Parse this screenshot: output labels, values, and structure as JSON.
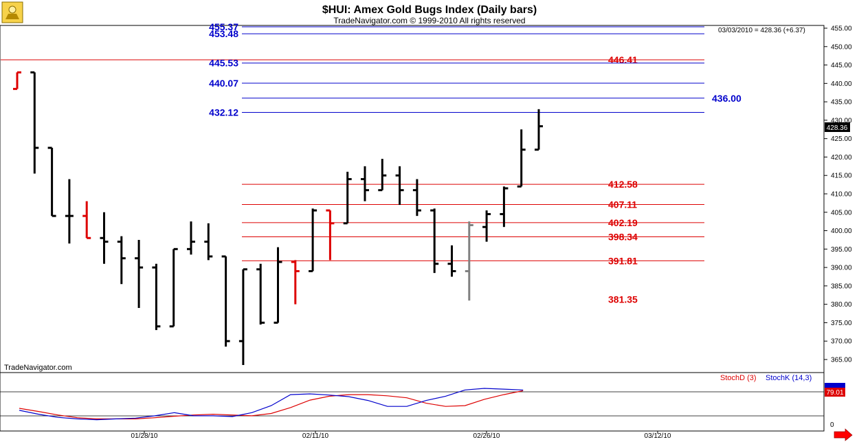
{
  "header": {
    "title": "$HUI:  Amex Gold Bugs Index  (Daily bars)",
    "subtitle": "TradeNavigator.com © 1999-2010 All rights reserved",
    "quote": "03/03/2010 = 428.36 (+6.37)",
    "last_price": "428.36",
    "cut_label": "455.37"
  },
  "watermark": "TradeNavigator.com",
  "colors": {
    "blue": "#0000cc",
    "red": "#dd0000",
    "up": "#000000",
    "gray": "#808080"
  },
  "chart_data": [
    {
      "type": "bar",
      "title": "$HUI:  Amex Gold Bugs Index  (Daily bars)",
      "ylim": [
        360,
        457
      ],
      "y_ticks": [
        "455.00",
        "450.00",
        "445.00",
        "440.00",
        "435.00",
        "430.00",
        "425.00",
        "420.00",
        "415.00",
        "410.00",
        "405.00",
        "400.00",
        "395.00",
        "390.00",
        "385.00",
        "380.00",
        "375.00",
        "370.00",
        "365.00"
      ],
      "x_ticks": [
        "01/28/10",
        "02/11/10",
        "02/26/10",
        "03/12/10"
      ],
      "bars": [
        {
          "o": 438.5,
          "h": 443.0,
          "l": 438.5,
          "c": 443.0,
          "color": "red"
        },
        {
          "o": 443.0,
          "h": 443.0,
          "l": 415.5,
          "c": 422.5,
          "color": "black"
        },
        {
          "o": 422.5,
          "h": 422.5,
          "l": 404.0,
          "c": 404.0,
          "color": "black"
        },
        {
          "o": 404.0,
          "h": 414.0,
          "l": 396.5,
          "c": 404.0,
          "color": "black"
        },
        {
          "o": 404.0,
          "h": 408.0,
          "l": 398.0,
          "c": 398.0,
          "color": "red"
        },
        {
          "o": 398.0,
          "h": 405.0,
          "l": 391.0,
          "c": 397.0,
          "color": "black"
        },
        {
          "o": 397.0,
          "h": 398.5,
          "l": 385.5,
          "c": 392.5,
          "color": "black"
        },
        {
          "o": 392.5,
          "h": 397.5,
          "l": 379.0,
          "c": 390.0,
          "color": "black"
        },
        {
          "o": 390.0,
          "h": 391.0,
          "l": 373.0,
          "c": 374.0,
          "color": "black"
        },
        {
          "o": 374.0,
          "h": 395.0,
          "l": 374.0,
          "c": 395.0,
          "color": "black"
        },
        {
          "o": 395.0,
          "h": 402.5,
          "l": 393.5,
          "c": 397.0,
          "color": "black"
        },
        {
          "o": 397.0,
          "h": 402.0,
          "l": 392.0,
          "c": 393.0,
          "color": "black"
        },
        {
          "o": 393.0,
          "h": 393.0,
          "l": 368.5,
          "c": 370.0,
          "color": "black"
        },
        {
          "o": 370.0,
          "h": 389.5,
          "l": 363.5,
          "c": 389.5,
          "color": "black"
        },
        {
          "o": 389.5,
          "h": 391.0,
          "l": 374.5,
          "c": 375.0,
          "color": "black"
        },
        {
          "o": 375.0,
          "h": 395.5,
          "l": 375.0,
          "c": 391.5,
          "color": "black"
        },
        {
          "o": 391.5,
          "h": 392.0,
          "l": 380.0,
          "c": 389.0,
          "color": "red"
        },
        {
          "o": 389.0,
          "h": 406.0,
          "l": 389.0,
          "c": 405.5,
          "color": "black"
        },
        {
          "o": 405.5,
          "h": 405.5,
          "l": 392.0,
          "c": 402.0,
          "color": "red"
        },
        {
          "o": 402.0,
          "h": 416.0,
          "l": 402.0,
          "c": 414.0,
          "color": "black"
        },
        {
          "o": 414.0,
          "h": 417.5,
          "l": 408.0,
          "c": 411.0,
          "color": "black"
        },
        {
          "o": 411.0,
          "h": 419.5,
          "l": 411.0,
          "c": 415.0,
          "color": "black"
        },
        {
          "o": 415.0,
          "h": 417.5,
          "l": 407.0,
          "c": 411.0,
          "color": "black"
        },
        {
          "o": 411.0,
          "h": 414.0,
          "l": 404.0,
          "c": 405.5,
          "color": "black"
        },
        {
          "o": 405.5,
          "h": 406.0,
          "l": 388.5,
          "c": 391.0,
          "color": "black"
        },
        {
          "o": 391.0,
          "h": 396.0,
          "l": 387.5,
          "c": 389.0,
          "color": "black"
        },
        {
          "o": 389.0,
          "h": 402.5,
          "l": 381.0,
          "c": 401.5,
          "color": "gray"
        },
        {
          "o": 401.0,
          "h": 405.5,
          "l": 397.0,
          "c": 404.5,
          "color": "black"
        },
        {
          "o": 404.5,
          "h": 412.0,
          "l": 401.0,
          "c": 411.5,
          "color": "black"
        },
        {
          "o": 412.0,
          "h": 427.5,
          "l": 412.0,
          "c": 422.0,
          "color": "black"
        },
        {
          "o": 422.0,
          "h": 433.0,
          "l": 422.0,
          "c": 428.36,
          "color": "black"
        }
      ],
      "levels": [
        {
          "value": 455.37,
          "label": "455.37",
          "color": "blue",
          "side": "left",
          "line": true
        },
        {
          "value": 453.48,
          "label": "453.48",
          "color": "blue",
          "side": "left",
          "line": true
        },
        {
          "value": 446.41,
          "label": "446.41",
          "color": "red",
          "side": "right",
          "line": true,
          "full": true
        },
        {
          "value": 445.53,
          "label": "445.53",
          "color": "blue",
          "side": "left",
          "line": true
        },
        {
          "value": 440.07,
          "label": "440.07",
          "color": "blue",
          "side": "left",
          "line": true
        },
        {
          "value": 436.0,
          "label": "436.00",
          "color": "blue",
          "side": "right",
          "line": true
        },
        {
          "value": 432.12,
          "label": "432.12",
          "color": "blue",
          "side": "left",
          "line": true
        },
        {
          "value": 412.58,
          "label": "412.58",
          "color": "red",
          "side": "right",
          "line": true
        },
        {
          "value": 407.11,
          "label": "407.11",
          "color": "red",
          "side": "right",
          "line": true
        },
        {
          "value": 402.19,
          "label": "402.19",
          "color": "red",
          "side": "right",
          "line": true
        },
        {
          "value": 398.34,
          "label": "398.34",
          "color": "red",
          "side": "right",
          "line": true
        },
        {
          "value": 391.81,
          "label": "391.81",
          "color": "red",
          "side": "right",
          "line": true
        },
        {
          "value": 381.35,
          "label": "381.35",
          "color": "red",
          "side": "right",
          "line": false
        }
      ]
    },
    {
      "type": "line",
      "ylim": [
        0,
        100
      ],
      "y_ticks": [
        "0"
      ],
      "last_value": "79.01",
      "series": [
        {
          "name": "StochD (3)",
          "color": "red",
          "values": [
            35,
            27,
            18,
            11,
            8,
            8,
            8,
            11,
            15,
            18,
            20,
            18,
            16,
            22,
            37,
            56,
            66,
            70,
            70,
            67,
            62,
            48,
            40,
            42,
            58,
            70,
            80
          ]
        },
        {
          "name": "StochK (14,3)",
          "color": "blue",
          "values": [
            30,
            20,
            12,
            8,
            6,
            8,
            10,
            16,
            24,
            16,
            16,
            14,
            24,
            42,
            70,
            72,
            69,
            65,
            55,
            40,
            40,
            55,
            66,
            82,
            86,
            84,
            82
          ]
        }
      ]
    }
  ],
  "footer": {
    "scroll_label": "scroll-right"
  }
}
